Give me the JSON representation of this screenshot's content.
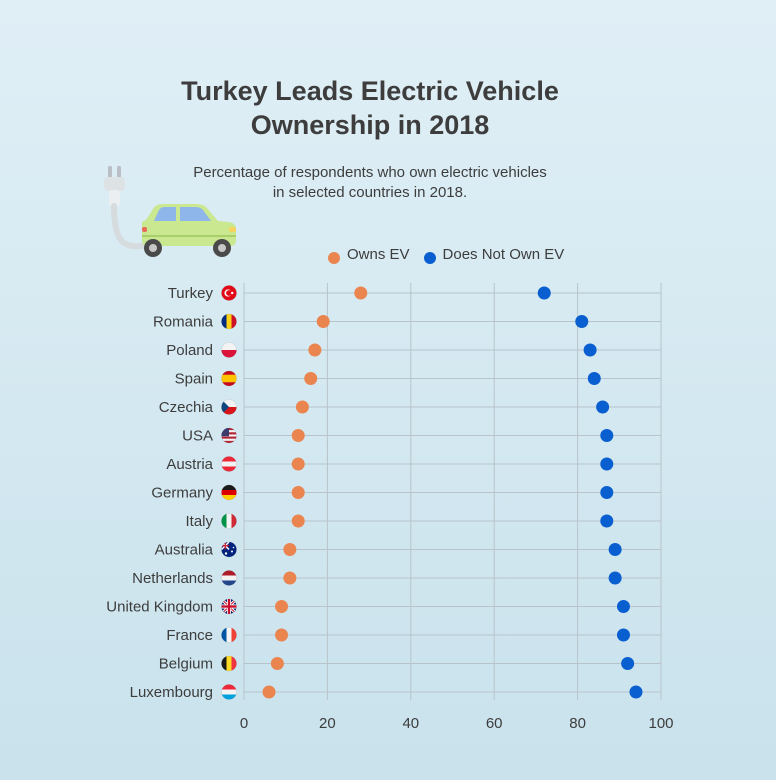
{
  "header": {
    "title_line1": "Turkey Leads Electric Vehicle",
    "title_line2": "Ownership in 2018",
    "subtitle_line1": "Percentage of respondents who own electric vehicles",
    "subtitle_line2": "in selected countries in 2018."
  },
  "colors": {
    "owns": "#ea8550",
    "does_not_own": "#0a5fd0",
    "grid": "#b8c4ca",
    "text": "#3d3d3d"
  },
  "chart_data": {
    "type": "scatter",
    "orientation": "dot-plot-horizontal",
    "categories": [
      "Turkey",
      "Romania",
      "Poland",
      "Spain",
      "Czechia",
      "USA",
      "Austria",
      "Germany",
      "Italy",
      "Australia",
      "Netherlands",
      "United Kingdom",
      "France",
      "Belgium",
      "Luxembourg"
    ],
    "series": [
      {
        "name": "Owns EV",
        "color": "#ea8550",
        "values": [
          28,
          19,
          17,
          16,
          14,
          13,
          13,
          13,
          13,
          11,
          11,
          9,
          9,
          8,
          6
        ]
      },
      {
        "name": "Does Not Own EV",
        "color": "#0a5fd0",
        "values": [
          72,
          81,
          83,
          84,
          86,
          87,
          87,
          87,
          87,
          89,
          89,
          91,
          91,
          92,
          94
        ]
      }
    ],
    "xlim": [
      0,
      100
    ],
    "xticks": [
      0,
      20,
      40,
      60,
      80,
      100
    ],
    "grid": true,
    "legend_position": "top",
    "flag_icons": [
      "turkey-flag-icon",
      "romania-flag-icon",
      "poland-flag-icon",
      "spain-flag-icon",
      "czechia-flag-icon",
      "usa-flag-icon",
      "austria-flag-icon",
      "germany-flag-icon",
      "italy-flag-icon",
      "australia-flag-icon",
      "netherlands-flag-icon",
      "united-kingdom-flag-icon",
      "france-flag-icon",
      "belgium-flag-icon",
      "luxembourg-flag-icon"
    ]
  }
}
